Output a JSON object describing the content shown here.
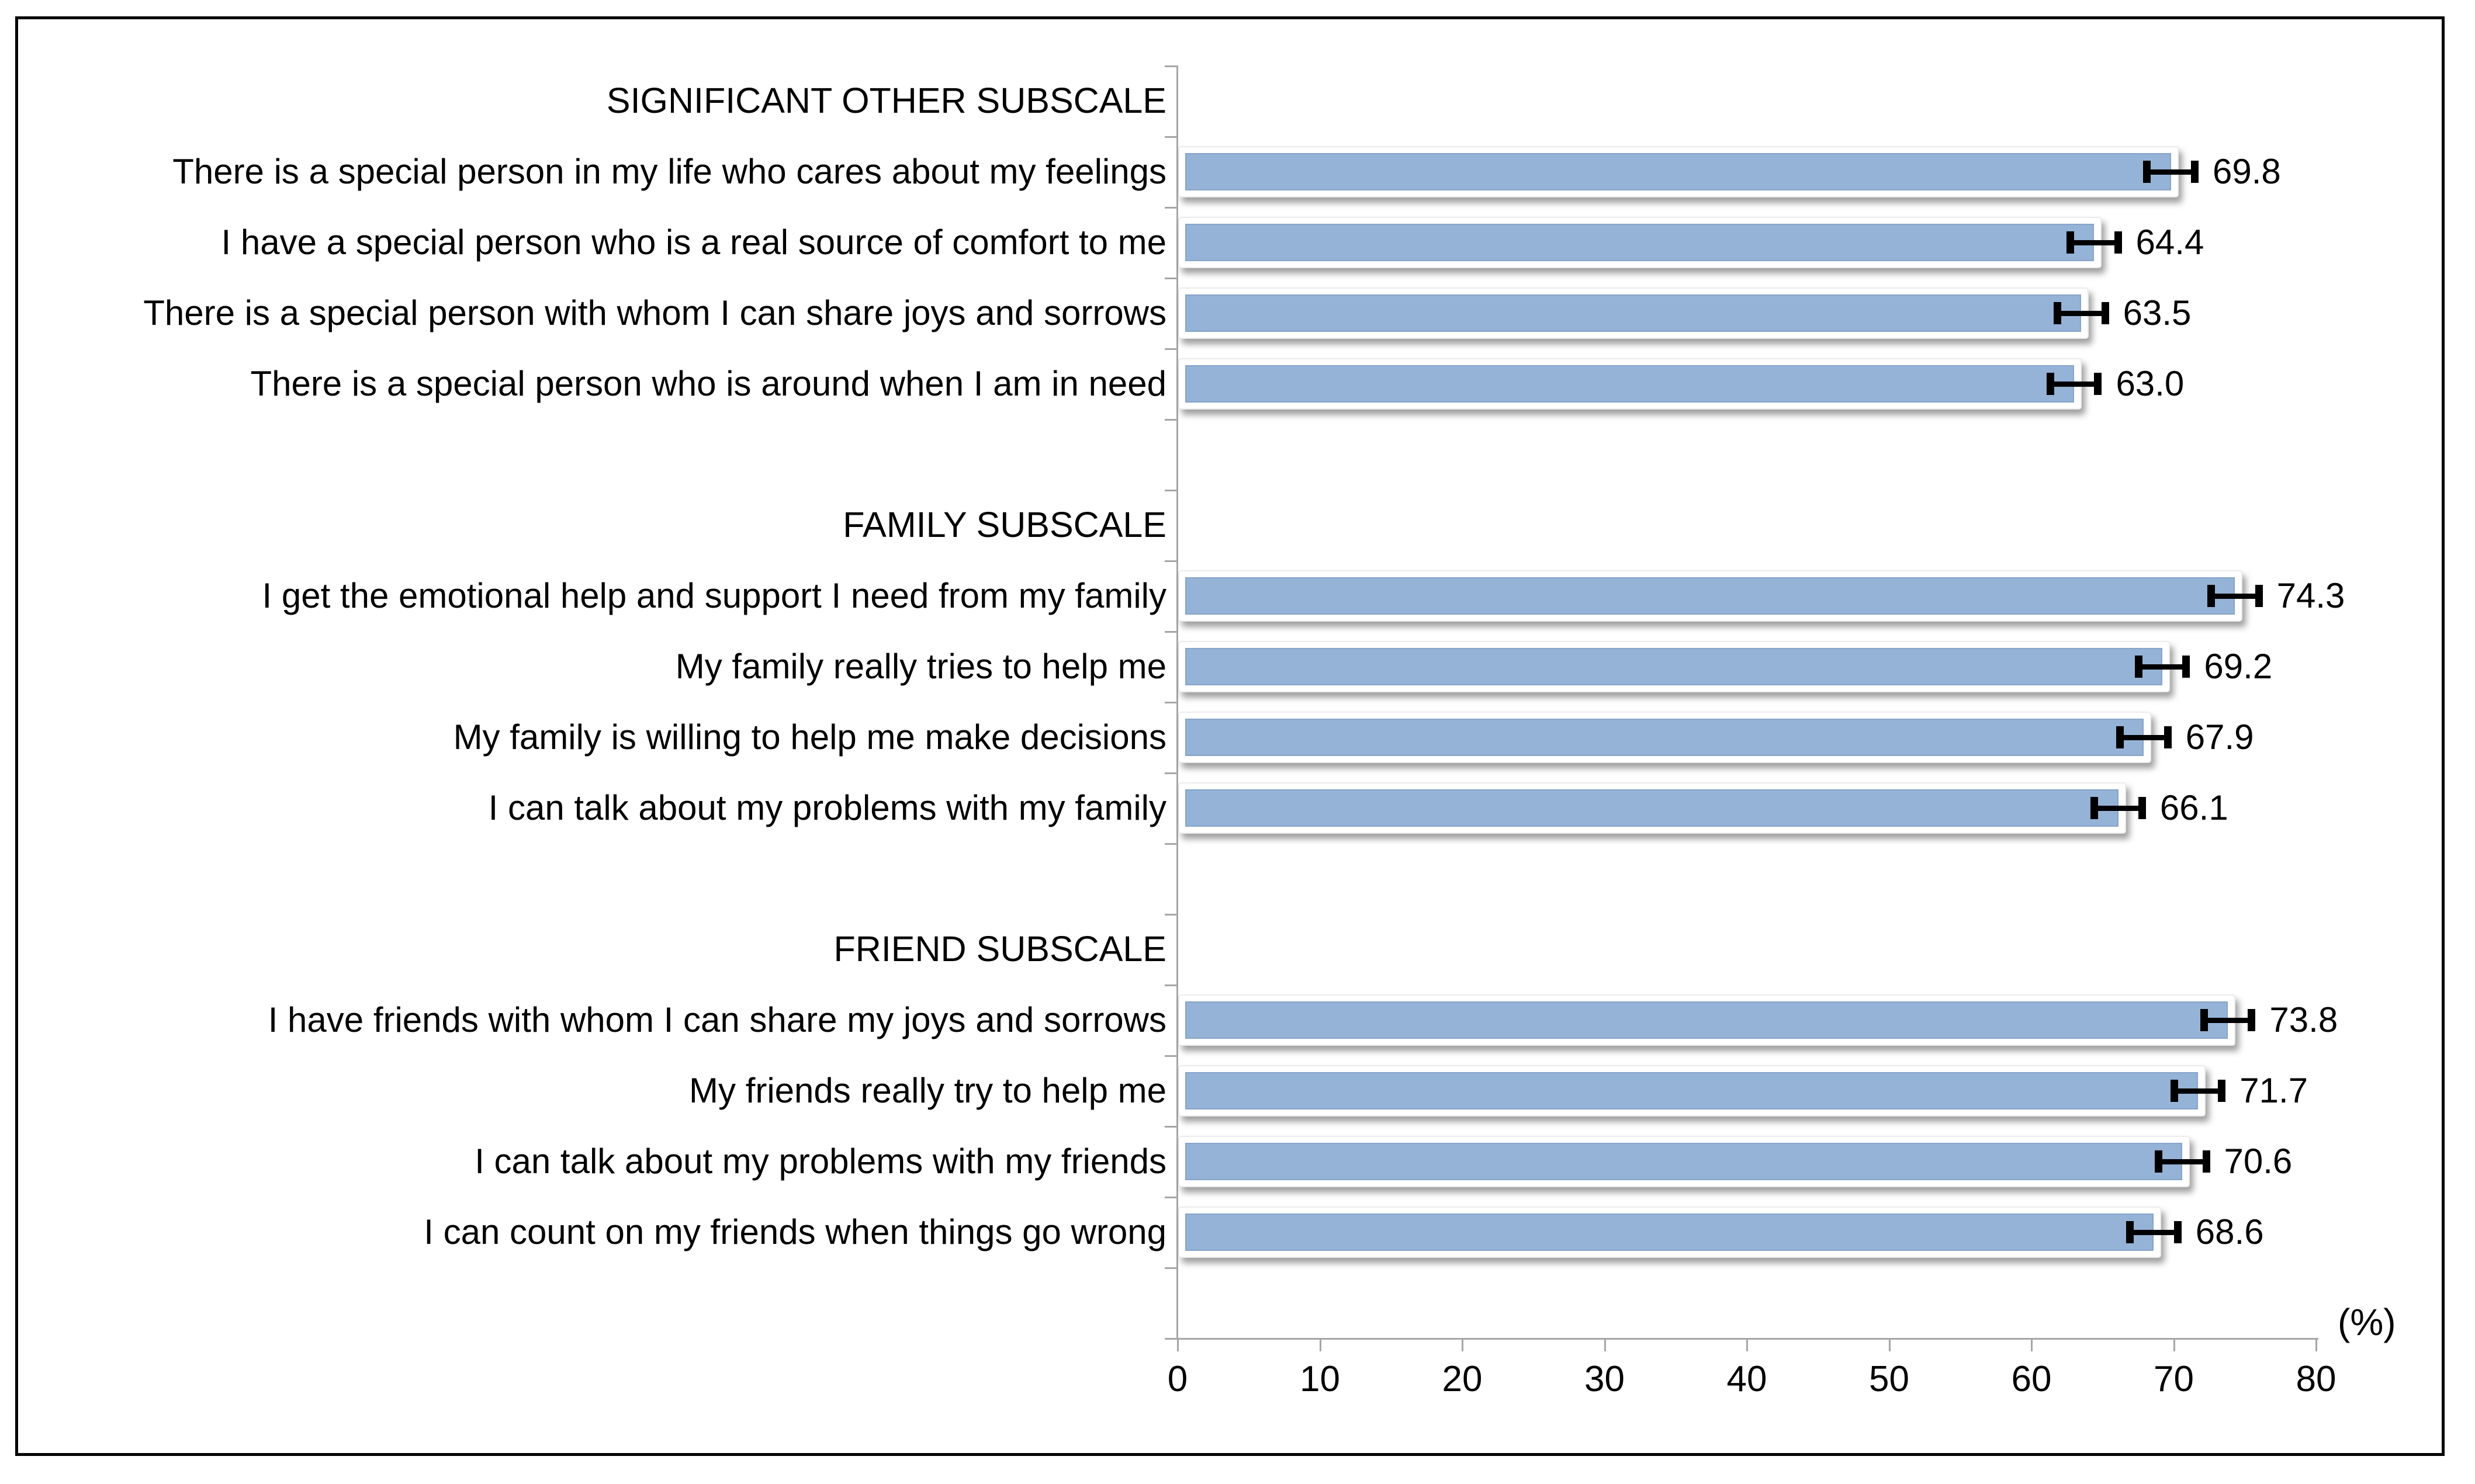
{
  "figure": {
    "background": "#ffffff",
    "border_color": "#000000",
    "axis_color": "#a6a6a6",
    "text_color": "#000000",
    "bar_color": "#95b3d7",
    "error_bar_color": "#000000"
  },
  "chart_data": {
    "type": "bar",
    "orientation": "horizontal",
    "unit": "%",
    "xlabel": "(%)",
    "xlim": [
      0,
      80
    ],
    "xticks": [
      0,
      10,
      20,
      30,
      40,
      50,
      60,
      70,
      80
    ],
    "xtick_labels": [
      "0",
      "10",
      "20",
      "30",
      "40",
      "50",
      "60",
      "70",
      "80"
    ],
    "grid": false,
    "legend": false,
    "error_bars": "horizontal, capped, estimated ±1.7 points",
    "sections": [
      {
        "title": "SIGNIFICANT OTHER SUBSCALE",
        "items": [
          {
            "label": "There is a special person in my life who cares about my feelings",
            "value": 69.8,
            "value_label": "69.8",
            "error": 1.7
          },
          {
            "label": "I have a special person who is a real source of comfort to me",
            "value": 64.4,
            "value_label": "64.4",
            "error": 1.7
          },
          {
            "label": "There is a special person with whom I can share joys and sorrows",
            "value": 63.5,
            "value_label": "63.5",
            "error": 1.7
          },
          {
            "label": "There is a special person who is around when I am in need",
            "value": 63.0,
            "value_label": "63.0",
            "error": 1.7
          }
        ]
      },
      {
        "title": "FAMILY SUBSCALE",
        "items": [
          {
            "label": "I get the emotional help and support I need from my family",
            "value": 74.3,
            "value_label": "74.3",
            "error": 1.7
          },
          {
            "label": "My family really tries to help me",
            "value": 69.2,
            "value_label": "69.2",
            "error": 1.7
          },
          {
            "label": "My family is willing to help me make decisions",
            "value": 67.9,
            "value_label": "67.9",
            "error": 1.7
          },
          {
            "label": "I can talk about my problems with my family",
            "value": 66.1,
            "value_label": "66.1",
            "error": 1.7
          }
        ]
      },
      {
        "title": "FRIEND SUBSCALE",
        "items": [
          {
            "label": "I have friends with whom I can share my joys and sorrows",
            "value": 73.8,
            "value_label": "73.8",
            "error": 1.7
          },
          {
            "label": "My friends really try to help me",
            "value": 71.7,
            "value_label": "71.7",
            "error": 1.7
          },
          {
            "label": "I can talk about my problems with my friends",
            "value": 70.6,
            "value_label": "70.6",
            "error": 1.7
          },
          {
            "label": "I can count on my friends when things go wrong",
            "value": 68.6,
            "value_label": "68.6",
            "error": 1.7
          }
        ]
      }
    ]
  }
}
